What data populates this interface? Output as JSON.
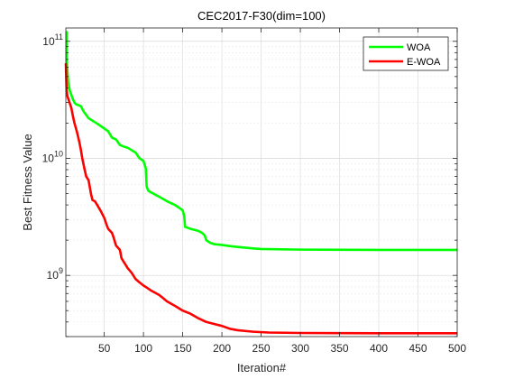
{
  "chart_data": {
    "type": "line",
    "title": "CEC2017-F30(dim=100)",
    "xlabel": "Iteration#",
    "ylabel": "Best Fitness Value",
    "xlim": [
      1,
      500
    ],
    "ylim": [
      300000000,
      130000000000
    ],
    "yscale": "log",
    "grid": true,
    "legend_position": "top-right",
    "xticks": [
      50,
      100,
      150,
      200,
      250,
      300,
      350,
      400,
      450,
      500
    ],
    "xtick_labels": [
      "50",
      "100",
      "150",
      "200",
      "250",
      "300",
      "350",
      "400",
      "450",
      "500"
    ],
    "yticks": [
      {
        "value": 1000000000,
        "base": "10",
        "exp": "9"
      },
      {
        "value": 10000000000,
        "base": "10",
        "exp": "10"
      },
      {
        "value": 100000000000,
        "base": "10",
        "exp": "11"
      }
    ],
    "series": [
      {
        "name": "WOA",
        "color": "#00ff00",
        "x": [
          1,
          2,
          2,
          4,
          6,
          10,
          12,
          14,
          20,
          24,
          28,
          30,
          40,
          50,
          55,
          60,
          65,
          70,
          75,
          80,
          90,
          95,
          100,
          103,
          104,
          106,
          110,
          120,
          130,
          140,
          145,
          150,
          152,
          153,
          160,
          170,
          175,
          178,
          180,
          185,
          190,
          200,
          210,
          220,
          240,
          250,
          300,
          400,
          500
        ],
        "y": [
          120000000000,
          120000000000,
          70000000000,
          45000000000,
          38000000000,
          32000000000,
          30000000000,
          29000000000,
          28000000000,
          25000000000,
          23000000000,
          22000000000,
          20000000000,
          18000000000,
          17000000000,
          15000000000,
          14500000000,
          13000000000,
          12600000000,
          12300000000,
          11200000000,
          10000000000,
          9500000000,
          8200000000,
          5800000000,
          5300000000,
          5100000000,
          4700000000,
          4300000000,
          4000000000,
          3800000000,
          3600000000,
          3200000000,
          2600000000,
          2500000000,
          2400000000,
          2300000000,
          2200000000,
          2000000000,
          1900000000,
          1850000000,
          1820000000,
          1780000000,
          1750000000,
          1700000000,
          1680000000,
          1660000000,
          1650000000,
          1650000000
        ]
      },
      {
        "name": "E-WOA",
        "color": "#ff0000",
        "x": [
          1,
          2,
          3,
          5,
          8,
          10,
          12,
          15,
          18,
          20,
          22,
          25,
          27,
          30,
          33,
          35,
          38,
          40,
          45,
          50,
          53,
          55,
          60,
          62,
          65,
          70,
          72,
          75,
          80,
          85,
          90,
          95,
          100,
          105,
          110,
          115,
          120,
          125,
          130,
          140,
          150,
          160,
          170,
          180,
          190,
          200,
          210,
          220,
          240,
          260,
          300,
          350,
          400,
          450,
          500
        ],
        "y": [
          65000000000,
          38000000000,
          34000000000,
          31000000000,
          27000000000,
          23000000000,
          20000000000,
          17000000000,
          14000000000,
          12000000000,
          10000000000,
          8000000000,
          7000000000,
          6500000000,
          5000000000,
          4400000000,
          4300000000,
          4100000000,
          3600000000,
          3100000000,
          2700000000,
          2500000000,
          2300000000,
          2100000000,
          1800000000,
          1650000000,
          1400000000,
          1300000000,
          1150000000,
          1050000000,
          930000000,
          870000000,
          820000000,
          780000000,
          740000000,
          710000000,
          680000000,
          640000000,
          600000000,
          550000000,
          500000000,
          470000000,
          430000000,
          400000000,
          385000000,
          370000000,
          350000000,
          340000000,
          330000000,
          325000000,
          322000000,
          321000000,
          320000000,
          320000000,
          320000000
        ]
      }
    ]
  }
}
